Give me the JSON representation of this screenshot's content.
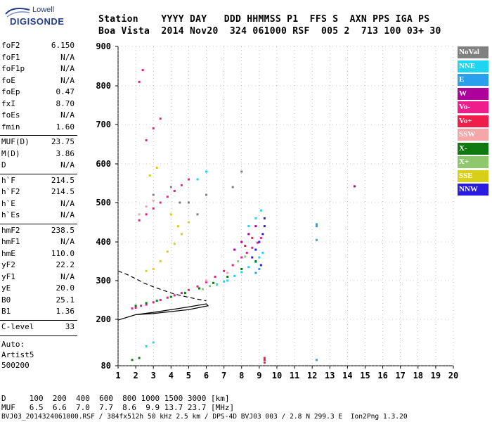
{
  "logo": {
    "line1": "Lowell",
    "line2": "DIGISONDE"
  },
  "header": {
    "line1": "Station    YYYY DAY   DDD HHMMSS P1  FFS S  AXN PPS IGA PS",
    "line2": "Boa Vista  2014 Nov20  324 061000 RSF  005 2  713 100 03+ 30"
  },
  "params_group1": [
    {
      "name": "foF2",
      "value": "6.150"
    },
    {
      "name": "foF1",
      "value": "N/A"
    },
    {
      "name": "foF1p",
      "value": "N/A"
    },
    {
      "name": "foE",
      "value": "N/A"
    },
    {
      "name": "foEp",
      "value": "0.47"
    },
    {
      "name": "fxI",
      "value": "8.70"
    },
    {
      "name": "foEs",
      "value": "N/A"
    },
    {
      "name": "fmin",
      "value": "1.60"
    }
  ],
  "params_group2": [
    {
      "name": "MUF(D)",
      "value": "23.75"
    },
    {
      "name": "M(D)",
      "value": "3.86"
    },
    {
      "name": "D",
      "value": "N/A"
    }
  ],
  "params_group3": [
    {
      "name": "h`F",
      "value": "214.5"
    },
    {
      "name": "h`F2",
      "value": "214.5"
    },
    {
      "name": "h`E",
      "value": "N/A"
    },
    {
      "name": "h`Es",
      "value": "N/A"
    }
  ],
  "params_group4": [
    {
      "name": "hmF2",
      "value": "238.5"
    },
    {
      "name": "hmF1",
      "value": "N/A"
    },
    {
      "name": "hmE",
      "value": "110.0"
    },
    {
      "name": "yF2",
      "value": "22.2"
    },
    {
      "name": "yF1",
      "value": "N/A"
    },
    {
      "name": "yE",
      "value": "20.0"
    },
    {
      "name": "B0",
      "value": "25.1"
    },
    {
      "name": "B1",
      "value": "1.36"
    }
  ],
  "params_group5": [
    {
      "name": "C-level",
      "value": "33"
    }
  ],
  "autoscaler": {
    "line1": "Auto:",
    "line2": "Artist5",
    "line3": "500200"
  },
  "footer": {
    "d_row": "D     100  200  400  600  800 1000 1500 3000 [km]",
    "muf_row": "MUF   6.5  6.6  7.0  7.7  8.6  9.9 13.7 23.7 [MHz]",
    "file_row": "BVJ03_2014324061000.RSF / 384fx512h 50 kHz 2.5 km / DPS-4D BVJ03 003 / 2.8 N 299.3 E  Ion2Png 1.3.20"
  },
  "chart_data": {
    "type": "scatter",
    "title": "",
    "xlabel": "",
    "ylabel": "",
    "xlim": [
      1,
      20
    ],
    "ylim": [
      80,
      900
    ],
    "x_ticks": [
      "1",
      "2",
      "3",
      "4",
      "5",
      "6",
      "7",
      "8",
      "9",
      "10",
      "11",
      "12",
      "13",
      "14",
      "15",
      "16",
      "17",
      "18",
      "19",
      "20"
    ],
    "y_ticks": [
      "80",
      "200",
      "300",
      "400",
      "500",
      "600",
      "700",
      "800",
      "900"
    ],
    "y_tick_values": [
      80,
      200,
      300,
      400,
      500,
      600,
      700,
      800,
      900
    ],
    "legend_placement": "right",
    "legend": [
      {
        "label": "NoVal",
        "color": "#808080"
      },
      {
        "label": "NNE",
        "color": "#1fd4f0"
      },
      {
        "label": "E",
        "color": "#2aa0ec"
      },
      {
        "label": "W",
        "color": "#b0009c"
      },
      {
        "label": "Vo-",
        "color": "#ef1c8c"
      },
      {
        "label": "Vo+",
        "color": "#f01c4a"
      },
      {
        "label": "SSW",
        "color": "#f4a6a8"
      },
      {
        "label": "X-",
        "color": "#107a10"
      },
      {
        "label": "X+",
        "color": "#8ec86c"
      },
      {
        "label": "SSE",
        "color": "#d8d018"
      },
      {
        "label": "NNW",
        "color": "#2a1ce0"
      }
    ],
    "series": [
      {
        "name": "Vo-",
        "color": "#ef1c8c",
        "points": [
          [
            1.8,
            228
          ],
          [
            2.0,
            230
          ],
          [
            2.3,
            235
          ],
          [
            2.6,
            238
          ],
          [
            3.0,
            244
          ],
          [
            3.4,
            250
          ],
          [
            3.8,
            256
          ],
          [
            4.2,
            262
          ],
          [
            4.6,
            268
          ],
          [
            5.0,
            276
          ],
          [
            5.5,
            285
          ],
          [
            6.0,
            296
          ],
          [
            6.5,
            310
          ],
          [
            7.0,
            325
          ],
          [
            7.5,
            340
          ],
          [
            8.0,
            360
          ],
          [
            8.3,
            372
          ],
          [
            8.6,
            385
          ],
          [
            8.9,
            398
          ],
          [
            9.1,
            410
          ],
          [
            2.2,
            455
          ],
          [
            2.6,
            470
          ],
          [
            3.0,
            485
          ],
          [
            3.4,
            500
          ],
          [
            3.8,
            515
          ],
          [
            4.2,
            530
          ],
          [
            4.6,
            545
          ],
          [
            5.0,
            560
          ],
          [
            2.6,
            660
          ],
          [
            3.0,
            690
          ],
          [
            3.4,
            715
          ],
          [
            2.2,
            810
          ],
          [
            2.4,
            840
          ]
        ]
      },
      {
        "name": "NNE",
        "color": "#1fd4f0",
        "points": [
          [
            7.2,
            300
          ],
          [
            7.6,
            312
          ],
          [
            8.0,
            322
          ],
          [
            8.4,
            335
          ],
          [
            8.8,
            348
          ],
          [
            9.0,
            360
          ],
          [
            9.2,
            372
          ],
          [
            6.6,
            290
          ],
          [
            7.0,
            298
          ],
          [
            5.5,
            560
          ],
          [
            6.0,
            580
          ],
          [
            8.4,
            440
          ],
          [
            8.8,
            460
          ],
          [
            9.1,
            480
          ],
          [
            2.6,
            130
          ],
          [
            3.0,
            140
          ]
        ]
      },
      {
        "name": "E",
        "color": "#2aa0ec",
        "points": [
          [
            12.25,
            445
          ],
          [
            12.25,
            440
          ],
          [
            12.25,
            405
          ],
          [
            12.25,
            95
          ],
          [
            8.8,
            320
          ],
          [
            9.0,
            330
          ]
        ]
      },
      {
        "name": "W",
        "color": "#b0009c",
        "points": [
          [
            14.4,
            542
          ],
          [
            8.0,
            400
          ],
          [
            8.4,
            420
          ],
          [
            8.8,
            440
          ],
          [
            7.6,
            380
          ]
        ]
      },
      {
        "name": "Vo+",
        "color": "#f01c4a",
        "points": [
          [
            9.3,
            88
          ],
          [
            9.3,
            95
          ],
          [
            9.3,
            100
          ],
          [
            8.2,
            390
          ],
          [
            8.6,
            410
          ]
        ]
      },
      {
        "name": "X-",
        "color": "#107a10",
        "points": [
          [
            2.0,
            235
          ],
          [
            2.6,
            242
          ],
          [
            3.2,
            248
          ],
          [
            4.0,
            258
          ],
          [
            4.8,
            268
          ],
          [
            5.6,
            280
          ],
          [
            6.4,
            294
          ],
          [
            7.2,
            310
          ],
          [
            8.0,
            330
          ],
          [
            8.8,
            350
          ],
          [
            1.8,
            95
          ],
          [
            2.2,
            100
          ]
        ]
      },
      {
        "name": "X+",
        "color": "#8ec86c",
        "points": [
          [
            5.8,
            278
          ],
          [
            6.2,
            286
          ],
          [
            7.8,
            350
          ],
          [
            8.2,
            362
          ]
        ]
      },
      {
        "name": "SSE",
        "color": "#d8d018",
        "points": [
          [
            2.6,
            325
          ],
          [
            3.0,
            330
          ],
          [
            3.4,
            350
          ],
          [
            3.8,
            375
          ],
          [
            4.2,
            395
          ],
          [
            4.6,
            420
          ],
          [
            5.0,
            450
          ],
          [
            2.8,
            570
          ],
          [
            3.2,
            590
          ],
          [
            4.0,
            470
          ],
          [
            4.4,
            440
          ]
        ]
      },
      {
        "name": "NNW",
        "color": "#2a1ce0",
        "points": [
          [
            8.8,
            380
          ],
          [
            9.0,
            400
          ],
          [
            9.2,
            420
          ],
          [
            9.3,
            440
          ],
          [
            9.3,
            460
          ],
          [
            8.6,
            360
          ],
          [
            9.1,
            340
          ]
        ]
      },
      {
        "name": "SSW",
        "color": "#f4a6a8",
        "points": [
          [
            2.2,
            470
          ],
          [
            2.6,
            490
          ],
          [
            3.0,
            505
          ],
          [
            7.2,
            320
          ],
          [
            6.0,
            300
          ]
        ]
      },
      {
        "name": "NoVal",
        "color": "#808080",
        "points": [
          [
            3.0,
            520
          ],
          [
            4.0,
            540
          ],
          [
            5.0,
            500
          ],
          [
            6.0,
            520
          ],
          [
            5.5,
            470
          ],
          [
            4.5,
            500
          ],
          [
            7.5,
            540
          ],
          [
            8.0,
            580
          ]
        ]
      }
    ],
    "profile_solid": [
      [
        1.0,
        198
      ],
      [
        2.0,
        212
      ],
      [
        3.0,
        218
      ],
      [
        4.0,
        225
      ],
      [
        5.0,
        232
      ],
      [
        6.0,
        240
      ],
      [
        6.1,
        235
      ],
      [
        5.0,
        225
      ],
      [
        4.0,
        220
      ],
      [
        3.0,
        215
      ],
      [
        2.0,
        212
      ]
    ],
    "profile_dashed": [
      [
        1.0,
        325
      ],
      [
        1.5,
        316
      ],
      [
        2.0,
        305
      ],
      [
        2.5,
        293
      ],
      [
        3.0,
        284
      ],
      [
        3.5,
        276
      ],
      [
        4.0,
        268
      ],
      [
        4.5,
        262
      ],
      [
        5.0,
        257
      ],
      [
        5.5,
        252
      ],
      [
        6.0,
        248
      ]
    ]
  }
}
